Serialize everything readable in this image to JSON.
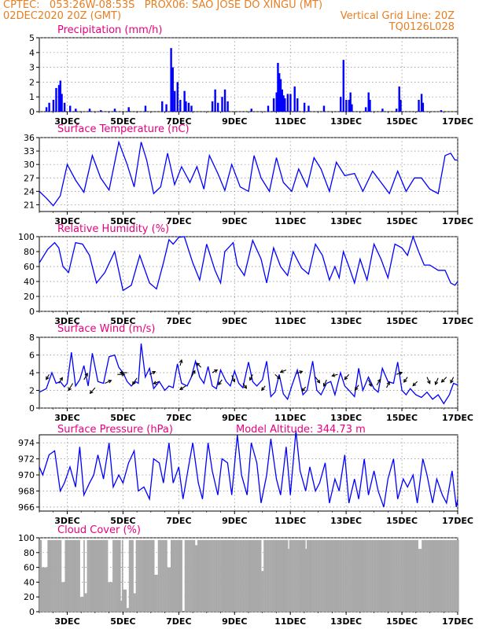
{
  "header": {
    "line1_left": "CPTEC:   053:26W-08:53S   PROX06: SAO JOSE DO XINGU (MT)",
    "line2_left": "02DEC2020 20Z (GMT)",
    "line2_right": "Vertical Grid Line: 20Z",
    "line3_right": "TQ0126L028"
  },
  "colors": {
    "header": "#e67e22",
    "title": "#e6007e",
    "series": "#0000ff",
    "cloud": "#a9a9a9",
    "grid": "#888888"
  },
  "x_ticks": [
    "3DEC",
    "5DEC",
    "7DEC",
    "9DEC",
    "11DEC",
    "13DEC",
    "15DEC",
    "17DEC"
  ],
  "model_altitude": "Model Altitude: 344.73 m",
  "chart_data": [
    {
      "type": "bar",
      "title": "Precipitation (mm/h)",
      "ylim": [
        0,
        5
      ],
      "yticks": [
        "0",
        "1",
        "2",
        "3",
        "4",
        "5"
      ],
      "x_range_days": [
        2.0,
        17.0
      ],
      "bars": [
        [
          2.25,
          0.3
        ],
        [
          2.35,
          0.6
        ],
        [
          2.5,
          0.8
        ],
        [
          2.6,
          1.6
        ],
        [
          2.7,
          1.8
        ],
        [
          2.75,
          2.1
        ],
        [
          2.8,
          1.2
        ],
        [
          2.9,
          0.6
        ],
        [
          3.1,
          0.4
        ],
        [
          3.3,
          0.2
        ],
        [
          3.8,
          0.2
        ],
        [
          4.2,
          0.1
        ],
        [
          4.7,
          0.2
        ],
        [
          5.2,
          0.3
        ],
        [
          5.8,
          0.4
        ],
        [
          6.4,
          0.7
        ],
        [
          6.55,
          0.5
        ],
        [
          6.72,
          4.3
        ],
        [
          6.78,
          3.0
        ],
        [
          6.85,
          1.4
        ],
        [
          6.95,
          2.0
        ],
        [
          7.05,
          0.8
        ],
        [
          7.2,
          1.4
        ],
        [
          7.25,
          0.7
        ],
        [
          7.35,
          0.6
        ],
        [
          7.45,
          0.4
        ],
        [
          8.2,
          0.7
        ],
        [
          8.3,
          1.5
        ],
        [
          8.4,
          0.6
        ],
        [
          8.55,
          1.0
        ],
        [
          8.65,
          1.5
        ],
        [
          8.75,
          0.7
        ],
        [
          9.6,
          0.2
        ],
        [
          10.2,
          0.4
        ],
        [
          10.4,
          0.9
        ],
        [
          10.5,
          1.3
        ],
        [
          10.55,
          3.3
        ],
        [
          10.6,
          2.6
        ],
        [
          10.65,
          2.2
        ],
        [
          10.7,
          1.5
        ],
        [
          10.75,
          1.1
        ],
        [
          10.8,
          0.9
        ],
        [
          10.9,
          1.2
        ],
        [
          11.0,
          1.2
        ],
        [
          11.15,
          1.7
        ],
        [
          11.25,
          0.9
        ],
        [
          11.5,
          0.6
        ],
        [
          11.65,
          0.4
        ],
        [
          12.2,
          0.4
        ],
        [
          12.8,
          1.0
        ],
        [
          12.9,
          3.5
        ],
        [
          13.0,
          0.8
        ],
        [
          13.1,
          0.8
        ],
        [
          13.15,
          1.3
        ],
        [
          13.2,
          0.5
        ],
        [
          13.7,
          0.3
        ],
        [
          13.8,
          1.3
        ],
        [
          13.85,
          0.8
        ],
        [
          14.3,
          0.2
        ],
        [
          14.8,
          0.2
        ],
        [
          14.9,
          1.7
        ],
        [
          14.95,
          0.8
        ],
        [
          15.6,
          0.8
        ],
        [
          15.7,
          1.2
        ],
        [
          15.75,
          0.6
        ],
        [
          16.4,
          0.1
        ]
      ]
    },
    {
      "type": "line",
      "title": "Surface Temperature (nC)",
      "ylim": [
        19.5,
        36
      ],
      "yticks": [
        "21",
        "24",
        "27",
        "30",
        "33",
        "36"
      ],
      "x": [
        2.0,
        2.25,
        2.5,
        2.75,
        3.0,
        3.3,
        3.6,
        3.9,
        4.2,
        4.5,
        4.85,
        5.15,
        5.4,
        5.65,
        5.85,
        6.1,
        6.35,
        6.6,
        6.85,
        7.1,
        7.4,
        7.65,
        7.9,
        8.1,
        8.4,
        8.65,
        8.9,
        9.2,
        9.5,
        9.7,
        9.95,
        10.25,
        10.5,
        10.75,
        11.05,
        11.3,
        11.6,
        11.85,
        12.1,
        12.4,
        12.65,
        12.95,
        13.3,
        13.6,
        13.95,
        14.25,
        14.55,
        14.85,
        15.15,
        15.45,
        15.7,
        16.0,
        16.3,
        16.55,
        16.75,
        16.9,
        17.0
      ],
      "values": [
        24.0,
        22.5,
        20.8,
        23.0,
        30.0,
        26.5,
        23.8,
        32.0,
        27.0,
        24.3,
        35.0,
        30.0,
        25.0,
        35.0,
        31.0,
        23.5,
        25.0,
        32.5,
        25.5,
        29.5,
        26.0,
        29.5,
        24.5,
        32.0,
        28.0,
        24.2,
        30.0,
        25.0,
        24.0,
        32.0,
        27.0,
        24.0,
        31.5,
        26.0,
        24.0,
        29.0,
        25.0,
        31.5,
        29.0,
        24.0,
        30.5,
        27.5,
        28.0,
        24.0,
        28.5,
        26.0,
        23.5,
        28.5,
        24.0,
        27.0,
        27.0,
        24.5,
        23.5,
        32.0,
        32.5,
        31.0,
        31.0
      ]
    },
    {
      "type": "line",
      "title": "Relative Humidity (%)",
      "ylim": [
        0,
        100
      ],
      "yticks": [
        "0",
        "20",
        "40",
        "60",
        "80",
        "100"
      ],
      "x": [
        2.0,
        2.3,
        2.55,
        2.7,
        2.85,
        3.05,
        3.3,
        3.55,
        3.8,
        4.05,
        4.35,
        4.7,
        5.0,
        5.3,
        5.6,
        5.95,
        6.2,
        6.45,
        6.65,
        6.8,
        7.0,
        7.2,
        7.5,
        7.75,
        8.0,
        8.3,
        8.5,
        8.65,
        8.95,
        9.1,
        9.35,
        9.65,
        9.95,
        10.15,
        10.4,
        10.65,
        10.9,
        11.1,
        11.4,
        11.65,
        11.9,
        12.15,
        12.4,
        12.6,
        12.75,
        12.9,
        13.1,
        13.3,
        13.5,
        13.75,
        14.0,
        14.25,
        14.5,
        14.75,
        15.0,
        15.2,
        15.4,
        15.6,
        15.8,
        16.0,
        16.3,
        16.55,
        16.75,
        16.9,
        17.0
      ],
      "values": [
        65,
        83,
        92,
        85,
        60,
        52,
        92,
        90,
        75,
        38,
        52,
        80,
        28,
        35,
        75,
        38,
        30,
        65,
        96,
        90,
        99,
        100,
        65,
        42,
        90,
        55,
        38,
        80,
        92,
        62,
        48,
        95,
        70,
        38,
        85,
        60,
        48,
        80,
        58,
        50,
        90,
        75,
        42,
        60,
        45,
        80,
        60,
        38,
        70,
        42,
        90,
        70,
        45,
        90,
        85,
        75,
        100,
        80,
        62,
        62,
        55,
        55,
        38,
        35,
        40
      ]
    },
    {
      "type": "line",
      "title": "Surface Wind (m/s)",
      "ylim": [
        0,
        8
      ],
      "yticks": [
        "0",
        "2",
        "4",
        "6",
        "8"
      ],
      "x": [
        2.0,
        2.25,
        2.45,
        2.6,
        2.75,
        2.9,
        3.0,
        3.15,
        3.3,
        3.45,
        3.6,
        3.75,
        3.9,
        4.1,
        4.3,
        4.5,
        4.7,
        4.85,
        5.0,
        5.15,
        5.3,
        5.45,
        5.55,
        5.65,
        5.8,
        5.95,
        6.1,
        6.3,
        6.5,
        6.65,
        6.8,
        6.95,
        7.1,
        7.3,
        7.45,
        7.6,
        7.75,
        7.9,
        8.05,
        8.2,
        8.35,
        8.5,
        8.7,
        8.85,
        9.0,
        9.15,
        9.3,
        9.5,
        9.65,
        9.8,
        10.0,
        10.15,
        10.3,
        10.45,
        10.6,
        10.75,
        10.9,
        11.05,
        11.25,
        11.45,
        11.6,
        11.8,
        11.95,
        12.1,
        12.3,
        12.45,
        12.6,
        12.8,
        12.95,
        13.1,
        13.3,
        13.45,
        13.6,
        13.8,
        14.0,
        14.15,
        14.3,
        14.5,
        14.7,
        14.85,
        15.0,
        15.15,
        15.3,
        15.5,
        15.7,
        15.9,
        16.1,
        16.3,
        16.5,
        16.7,
        16.85,
        17.0
      ],
      "values": [
        1.8,
        2.2,
        4.0,
        2.8,
        3.0,
        2.4,
        2.8,
        6.3,
        2.5,
        3.2,
        4.8,
        2.5,
        6.2,
        3.0,
        2.8,
        5.8,
        6.0,
        4.6,
        4.0,
        3.0,
        2.5,
        3.0,
        2.8,
        7.3,
        3.5,
        4.5,
        2.2,
        3.0,
        2.0,
        2.5,
        2.3,
        5.0,
        2.8,
        2.5,
        3.5,
        5.3,
        3.5,
        2.8,
        4.7,
        2.5,
        2.2,
        4.3,
        3.0,
        2.5,
        4.2,
        2.8,
        2.3,
        5.2,
        3.0,
        2.5,
        3.2,
        5.3,
        1.3,
        1.8,
        3.8,
        1.6,
        1.0,
        2.5,
        4.3,
        1.5,
        2.0,
        5.3,
        2.0,
        1.5,
        2.8,
        3.0,
        1.5,
        4.0,
        2.5,
        2.0,
        1.3,
        4.5,
        2.0,
        3.5,
        2.2,
        1.8,
        4.5,
        3.0,
        2.8,
        5.2,
        2.0,
        1.5,
        2.2,
        1.5,
        1.2,
        1.8,
        1.0,
        1.5,
        0.5,
        1.5,
        2.8,
        2.6
      ],
      "arrows": [
        [
          2.35,
          3.8,
          -0.4,
          -0.7
        ],
        [
          2.7,
          2.8,
          0.5,
          0.8
        ],
        [
          3.2,
          2.8,
          -0.6,
          -1.0
        ],
        [
          3.6,
          3.2,
          0.5,
          0.9
        ],
        [
          4.0,
          2.3,
          -0.7,
          -0.8
        ],
        [
          4.35,
          2.8,
          0.9,
          0.4
        ],
        [
          4.8,
          3.8,
          1.0,
          0.0
        ],
        [
          5.15,
          4.0,
          -1.0,
          0.0
        ],
        [
          5.5,
          3.4,
          -0.6,
          -0.9
        ],
        [
          5.95,
          3.8,
          0.8,
          0.4
        ],
        [
          6.3,
          3.0,
          -0.8,
          -0.3
        ],
        [
          7.05,
          4.8,
          0.2,
          0.8
        ],
        [
          7.25,
          2.5,
          -0.8,
          -0.5
        ],
        [
          7.45,
          3.5,
          0.5,
          0.9
        ],
        [
          7.8,
          4.6,
          -0.6,
          0.6
        ],
        [
          8.2,
          4.0,
          0.7,
          0.4
        ],
        [
          8.55,
          3.2,
          -0.5,
          -0.7
        ],
        [
          8.9,
          3.7,
          0.4,
          -0.9
        ],
        [
          9.3,
          2.8,
          0.5,
          -0.7
        ],
        [
          9.65,
          3.8,
          -0.4,
          -0.8
        ],
        [
          10.1,
          2.5,
          -0.5,
          -0.6
        ],
        [
          10.45,
          3.8,
          0.7,
          -0.6
        ],
        [
          10.85,
          4.3,
          -0.8,
          -0.3
        ],
        [
          11.2,
          3.9,
          0.9,
          0.3
        ],
        [
          11.55,
          2.4,
          -0.5,
          -0.6
        ],
        [
          11.9,
          3.5,
          0.6,
          -0.8
        ],
        [
          12.3,
          3.2,
          -0.4,
          -0.9
        ],
        [
          12.7,
          3.8,
          -0.8,
          -0.2
        ],
        [
          13.1,
          3.8,
          -0.6,
          -0.7
        ],
        [
          13.45,
          2.6,
          -0.5,
          -0.7
        ],
        [
          13.8,
          3.2,
          0.4,
          -0.9
        ],
        [
          14.1,
          2.6,
          0.5,
          0.8
        ],
        [
          14.45,
          2.3,
          0.4,
          0.8
        ],
        [
          14.8,
          3.8,
          0.8,
          0.3
        ],
        [
          15.2,
          3.5,
          -0.5,
          -0.7
        ],
        [
          15.55,
          3.0,
          -0.6,
          -0.6
        ],
        [
          15.9,
          3.5,
          0.4,
          -0.9
        ],
        [
          16.3,
          3.4,
          -0.4,
          -0.9
        ],
        [
          16.6,
          3.5,
          -0.7,
          -0.7
        ],
        [
          16.85,
          3.5,
          -0.4,
          -0.8
        ]
      ]
    },
    {
      "type": "line",
      "title": "Surface Pressure (hPa)",
      "ylim": [
        965.5,
        975
      ],
      "yticks": [
        "966",
        "968",
        "970",
        "972",
        "974"
      ],
      "x": [
        2.0,
        2.12,
        2.35,
        2.55,
        2.75,
        2.9,
        3.1,
        3.3,
        3.45,
        3.6,
        3.8,
        3.95,
        4.1,
        4.3,
        4.5,
        4.65,
        4.85,
        5.0,
        5.2,
        5.4,
        5.55,
        5.75,
        5.95,
        6.1,
        6.3,
        6.45,
        6.65,
        6.8,
        7.0,
        7.15,
        7.35,
        7.5,
        7.7,
        7.85,
        8.05,
        8.2,
        8.4,
        8.55,
        8.75,
        8.9,
        9.1,
        9.25,
        9.45,
        9.6,
        9.8,
        9.95,
        10.15,
        10.3,
        10.5,
        10.65,
        10.85,
        11.0,
        11.2,
        11.35,
        11.55,
        11.7,
        11.9,
        12.05,
        12.25,
        12.4,
        12.6,
        12.75,
        12.95,
        13.1,
        13.3,
        13.45,
        13.65,
        13.8,
        14.0,
        14.15,
        14.35,
        14.5,
        14.7,
        14.85,
        15.05,
        15.2,
        15.4,
        15.55,
        15.75,
        15.9,
        16.1,
        16.25,
        16.45,
        16.6,
        16.8,
        16.95,
        17.0
      ],
      "values": [
        971.0,
        970.0,
        972.5,
        973.0,
        968.0,
        969.0,
        971.0,
        968.5,
        973.5,
        967.5,
        969.0,
        970.0,
        972.5,
        969.5,
        974.0,
        968.5,
        970.0,
        969.0,
        971.5,
        973.0,
        968.0,
        968.5,
        967.0,
        972.0,
        971.5,
        969.0,
        974.0,
        969.0,
        971.0,
        967.0,
        971.0,
        974.0,
        969.0,
        967.0,
        974.0,
        970.5,
        967.5,
        972.0,
        971.5,
        967.5,
        975.0,
        970.0,
        967.5,
        974.0,
        971.5,
        966.5,
        970.0,
        974.5,
        969.5,
        967.5,
        973.5,
        967.5,
        975.5,
        970.5,
        968.0,
        971.0,
        968.0,
        969.0,
        971.5,
        966.5,
        969.5,
        968.0,
        972.5,
        966.5,
        969.5,
        967.0,
        972.0,
        967.5,
        970.5,
        968.0,
        966.0,
        969.5,
        972.0,
        967.0,
        969.5,
        968.5,
        970.0,
        966.5,
        972.0,
        970.0,
        966.5,
        969.5,
        967.5,
        966.5,
        970.5,
        966.0,
        967.0
      ]
    },
    {
      "type": "bar",
      "title": "Cloud Cover (%)",
      "ylim": [
        0,
        100
      ],
      "yticks": [
        "0",
        "20",
        "40",
        "60",
        "80",
        "100"
      ],
      "x_range_days": [
        2.0,
        17.0
      ],
      "dips": [
        [
          2.05,
          2.25,
          60
        ],
        [
          2.75,
          2.9,
          40
        ],
        [
          3.45,
          3.55,
          20
        ],
        [
          3.62,
          3.7,
          25
        ],
        [
          4.45,
          4.6,
          40
        ],
        [
          4.9,
          4.95,
          15
        ],
        [
          5.0,
          5.12,
          30
        ],
        [
          5.1,
          5.2,
          5
        ],
        [
          5.35,
          5.45,
          25
        ],
        [
          6.1,
          6.25,
          50
        ],
        [
          6.58,
          6.7,
          60
        ],
        [
          7.1,
          7.17,
          0
        ],
        [
          7.55,
          7.65,
          90
        ],
        [
          9.95,
          10.0,
          55
        ],
        [
          10.9,
          10.95,
          85
        ],
        [
          11.5,
          11.55,
          85
        ],
        [
          15.55,
          15.7,
          85
        ]
      ]
    }
  ]
}
